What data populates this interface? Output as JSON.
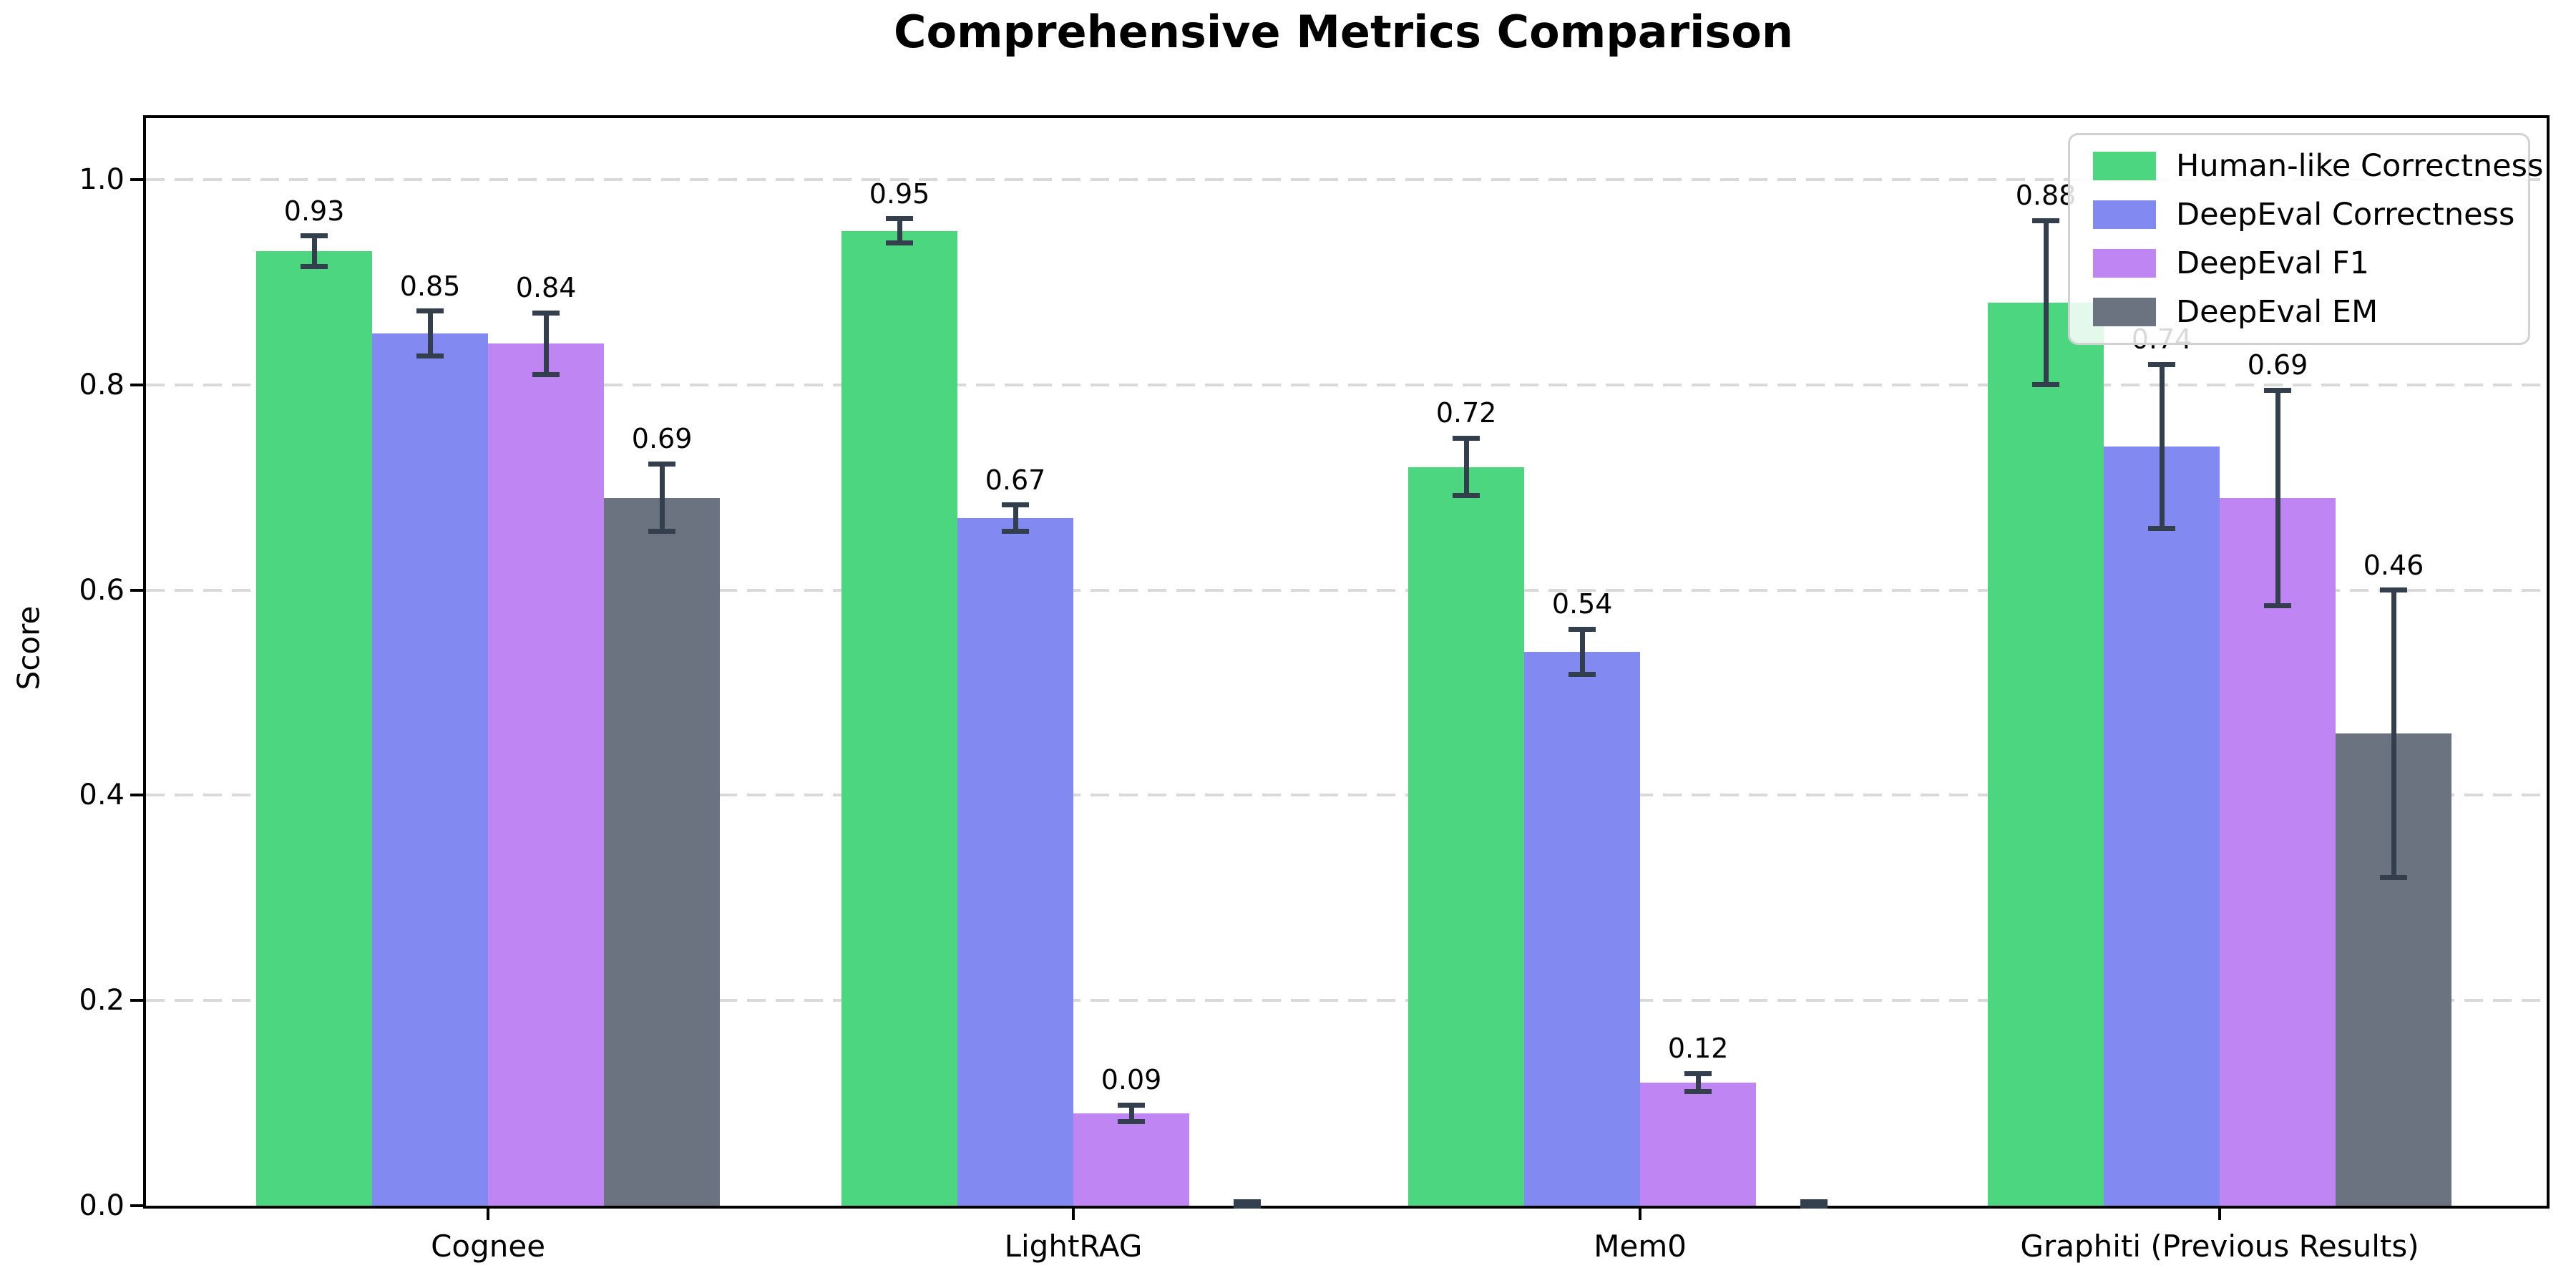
{
  "title": "Comprehensive Metrics Comparison",
  "chart_data": {
    "type": "bar",
    "title": "Comprehensive Metrics Comparison",
    "xlabel": "",
    "ylabel": "Score",
    "categories": [
      "Cognee",
      "LightRAG",
      "Mem0",
      "Graphiti (Previous Results)"
    ],
    "series": [
      {
        "name": "Human-like Correctness",
        "color": "#4dd680",
        "values": [
          0.93,
          0.95,
          0.72,
          0.88
        ],
        "errors": [
          0.015,
          0.012,
          0.028,
          0.08
        ],
        "labels": [
          "0.93",
          "0.95",
          "0.72",
          "0.88"
        ]
      },
      {
        "name": "DeepEval Correctness",
        "color": "#8289f0",
        "values": [
          0.85,
          0.67,
          0.54,
          0.74
        ],
        "errors": [
          0.022,
          0.013,
          0.022,
          0.08
        ],
        "labels": [
          "0.85",
          "0.67",
          "0.54",
          "0.74"
        ]
      },
      {
        "name": "DeepEval F1",
        "color": "#bf85f3",
        "values": [
          0.84,
          0.09,
          0.12,
          0.69
        ],
        "errors": [
          0.03,
          0.008,
          0.009,
          0.105
        ],
        "labels": [
          "0.84",
          "0.09",
          "0.12",
          "0.69"
        ]
      },
      {
        "name": "DeepEval EM",
        "color": "#6b7280",
        "values": [
          0.69,
          0.0,
          0.0,
          0.46
        ],
        "errors": [
          0.033,
          0.004,
          0.004,
          0.14
        ],
        "labels": [
          "0.69",
          null,
          null,
          "0.46"
        ]
      }
    ],
    "yticks": [
      0.0,
      0.2,
      0.4,
      0.6,
      0.8,
      1.0
    ],
    "ytick_labels": [
      "0.0",
      "0.2",
      "0.4",
      "0.6",
      "0.8",
      "1.0"
    ],
    "ylim": [
      0,
      1.06
    ],
    "grid": "horizontal-dashed",
    "legend_position": "upper-right",
    "error_bar_color": "#343f4e",
    "gridline_color": "#d9d9d9"
  }
}
